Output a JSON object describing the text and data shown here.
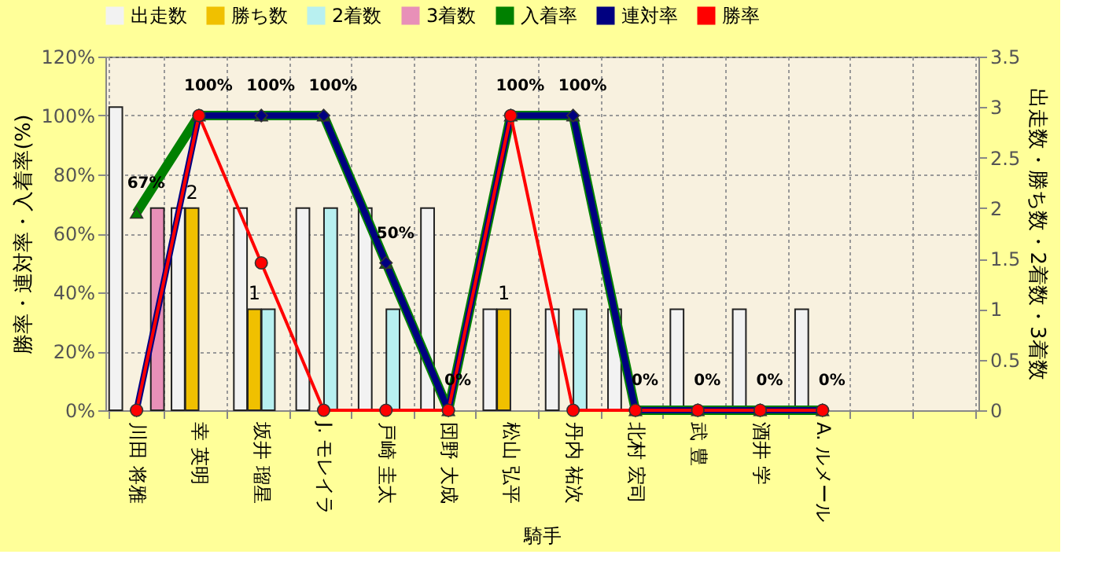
{
  "chart_data": {
    "type": "bar",
    "xlabel": "騎手",
    "ylabel": "勝率・連対率・入着率(%)",
    "y2label": "出走数・勝ち数・2着数・3着数",
    "categories": [
      "川田 将雅",
      "幸 英明",
      "坂井 瑠星",
      "J. モレイラ",
      "戸崎 圭太",
      "団野 大成",
      "松山 弘平",
      "丹内 祐次",
      "北村 宏司",
      "武 豊",
      "酒井 学",
      "A. ルメール",
      null,
      null
    ],
    "series": [
      {
        "name": "出走数",
        "color": "#f2f2f2",
        "axis": "y2",
        "values": [
          3,
          2,
          2,
          2,
          2,
          2,
          1,
          1,
          1,
          1,
          1,
          1,
          null,
          null
        ]
      },
      {
        "name": "勝ち数",
        "color": "#f0c000",
        "axis": "y2",
        "values": [
          0,
          2,
          1,
          0,
          0,
          0,
          1,
          0,
          0,
          0,
          0,
          0,
          null,
          null
        ],
        "value_labels": [
          null,
          "2",
          "1",
          null,
          null,
          null,
          "1",
          null,
          null,
          null,
          null,
          null,
          null,
          null
        ]
      },
      {
        "name": "2着数",
        "color": "#b8f0f0",
        "axis": "y2",
        "values": [
          0,
          0,
          1,
          2,
          1,
          0,
          0,
          1,
          0,
          0,
          0,
          0,
          null,
          null
        ]
      },
      {
        "name": "3着数",
        "color": "#e890b8",
        "axis": "y2",
        "values": [
          2,
          0,
          0,
          0,
          0,
          0,
          0,
          0,
          0,
          0,
          0,
          0,
          null,
          null
        ]
      },
      {
        "name": "入着率",
        "type": "line",
        "color": "#008000",
        "axis": "y",
        "marker": "triangle",
        "values": [
          67,
          100,
          100,
          100,
          50,
          0,
          100,
          100,
          0,
          0,
          0,
          0,
          null,
          null
        ],
        "value_labels": [
          "67%",
          "100%",
          "100%",
          "100%",
          "50%",
          "0%",
          "100%",
          "100%",
          "0%",
          "0%",
          "0%",
          "0%",
          null,
          null
        ]
      },
      {
        "name": "連対率",
        "type": "line",
        "color": "#000080",
        "axis": "y",
        "marker": "diamond",
        "values": [
          0,
          100,
          100,
          100,
          50,
          0,
          100,
          100,
          0,
          0,
          0,
          0,
          null,
          null
        ]
      },
      {
        "name": "勝率",
        "type": "line",
        "color": "#ff0000",
        "axis": "y",
        "marker": "circle",
        "values": [
          0,
          100,
          50,
          0,
          0,
          0,
          100,
          0,
          0,
          0,
          0,
          0,
          null,
          null
        ]
      }
    ],
    "ylim": [
      0,
      120
    ],
    "yticks": [
      {
        "value": 0,
        "label": "0%"
      },
      {
        "value": 20,
        "label": "20%"
      },
      {
        "value": 40,
        "label": "40%"
      },
      {
        "value": 60,
        "label": "60%"
      },
      {
        "value": 80,
        "label": "80%"
      },
      {
        "value": 100,
        "label": "100%"
      },
      {
        "value": 120,
        "label": "120%"
      }
    ],
    "y2lim": [
      0,
      3.5
    ],
    "y2ticks": [
      0,
      0.5,
      1,
      1.5,
      2,
      2.5,
      3,
      3.5
    ],
    "grid": true,
    "legend": "top",
    "line_style": "solid"
  }
}
